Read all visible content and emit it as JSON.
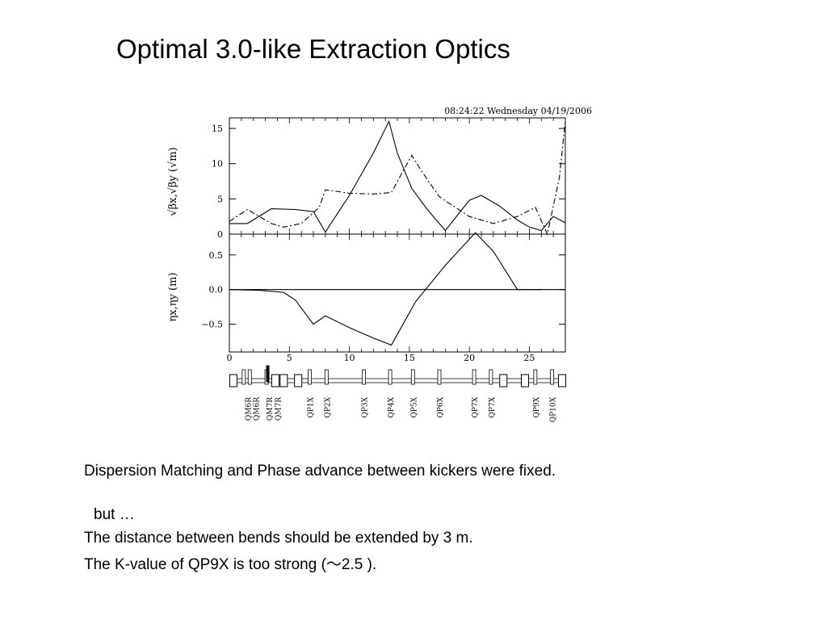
{
  "slide": {
    "title": "Optimal 3.0-like Extraction Optics",
    "timestamp": "08:24:22 Wednesday 04/19/2006",
    "notes": [
      "Dispersion Matching and Phase advance between kickers were fixed.",
      "but …",
      "The distance between bends should be extended by 3 m.",
      "The K-value of QP9X is too strong (〜2.5 )."
    ]
  },
  "chart_data": [
    {
      "type": "line",
      "ylabel": "√βx,√βy (√m)",
      "xlim": [
        0,
        28
      ],
      "ylim": [
        0,
        16.5
      ],
      "y_ticks": [
        0,
        5,
        10,
        15
      ],
      "series": [
        {
          "style": "solid",
          "x": [
            0,
            1.5,
            3.5,
            5.5,
            7,
            8,
            10,
            12,
            13.3,
            14,
            15.2,
            16.5,
            18,
            20,
            21,
            22.5,
            24,
            25,
            26,
            27,
            28
          ],
          "y": [
            1.5,
            1.5,
            3.6,
            3.5,
            3.2,
            0.3,
            5.5,
            11.5,
            16,
            11.5,
            6.5,
            3.5,
            0.5,
            4.8,
            5.5,
            4,
            2,
            1,
            0.5,
            2.5,
            1.6
          ]
        },
        {
          "style": "dashed",
          "x": [
            0,
            1.5,
            2.5,
            3.5,
            4.5,
            6,
            7.5,
            8,
            10,
            12,
            13.5,
            15.2,
            16,
            17.5,
            20,
            22,
            24,
            25.5,
            26.5,
            27.5,
            28
          ],
          "y": [
            1.8,
            3.5,
            2.5,
            1.5,
            1,
            1.5,
            3.8,
            6.3,
            5.8,
            5.7,
            5.9,
            11.2,
            9,
            5.3,
            2.5,
            1.5,
            2.5,
            3.8,
            0,
            8,
            16
          ]
        }
      ]
    },
    {
      "type": "line",
      "ylabel": "ηx,ηy (m)",
      "xlim": [
        0,
        28
      ],
      "ylim": [
        -0.9,
        0.8
      ],
      "y_ticks": [
        0.5,
        0.0,
        -0.5
      ],
      "tick_labels": [
        "0.5",
        "0.0",
        "−0.5"
      ],
      "series": [
        {
          "style": "solid",
          "x": [
            0,
            28
          ],
          "y": [
            0,
            0
          ]
        },
        {
          "style": "solid",
          "x": [
            0,
            2.5,
            4.5,
            5.5,
            7,
            8,
            10,
            12,
            13.5,
            15.5,
            18,
            20.5,
            22,
            24,
            26
          ],
          "y": [
            0,
            -0.01,
            -0.04,
            -0.15,
            -0.5,
            -0.38,
            -0.55,
            -0.7,
            -0.8,
            -0.18,
            0.35,
            0.82,
            0.55,
            0,
            0
          ]
        }
      ]
    }
  ],
  "x_axis": {
    "ticks": [
      0,
      5,
      10,
      15,
      20,
      25
    ],
    "tick_labels": [
      "0",
      "5",
      "10",
      "15",
      "20",
      "25"
    ]
  },
  "lattice": {
    "elements": [
      {
        "kind": "box",
        "s": 0.3
      },
      {
        "kind": "line",
        "s": 1.2
      },
      {
        "kind": "line",
        "s": 1.7
      },
      {
        "kind": "line",
        "s": 3.1
      },
      {
        "kind": "tall",
        "s": 3.2
      },
      {
        "kind": "box",
        "s": 3.8
      },
      {
        "kind": "box",
        "s": 4.5
      },
      {
        "kind": "box",
        "s": 5.7
      },
      {
        "kind": "line",
        "s": 6.7
      },
      {
        "kind": "line",
        "s": 8.1
      },
      {
        "kind": "line",
        "s": 11.2
      },
      {
        "kind": "line",
        "s": 13.4
      },
      {
        "kind": "line",
        "s": 15.3
      },
      {
        "kind": "line",
        "s": 17.5
      },
      {
        "kind": "line",
        "s": 20.4
      },
      {
        "kind": "line",
        "s": 21.8
      },
      {
        "kind": "box",
        "s": 22.8
      },
      {
        "kind": "box",
        "s": 24.6
      },
      {
        "kind": "line",
        "s": 25.5
      },
      {
        "kind": "line",
        "s": 26.9
      },
      {
        "kind": "box",
        "s": 27.7
      }
    ],
    "labels": [
      {
        "text": "QM6R",
        "s": 1.5
      },
      {
        "text": "QM6R",
        "s": 2.2
      },
      {
        "text": "QM7R",
        "s": 3.3
      },
      {
        "text": "QM7R",
        "s": 4.0
      },
      {
        "text": "QP1X",
        "s": 6.7
      },
      {
        "text": "QP2X",
        "s": 8.1
      },
      {
        "text": "QP3X",
        "s": 11.2
      },
      {
        "text": "QP4X",
        "s": 13.4
      },
      {
        "text": "QP5X",
        "s": 15.3
      },
      {
        "text": "QP6X",
        "s": 17.5
      },
      {
        "text": "QP7X",
        "s": 20.4
      },
      {
        "text": "QP7X",
        "s": 21.8
      },
      {
        "text": "QP9X",
        "s": 25.5
      },
      {
        "text": "QP10X",
        "s": 26.9
      }
    ]
  }
}
